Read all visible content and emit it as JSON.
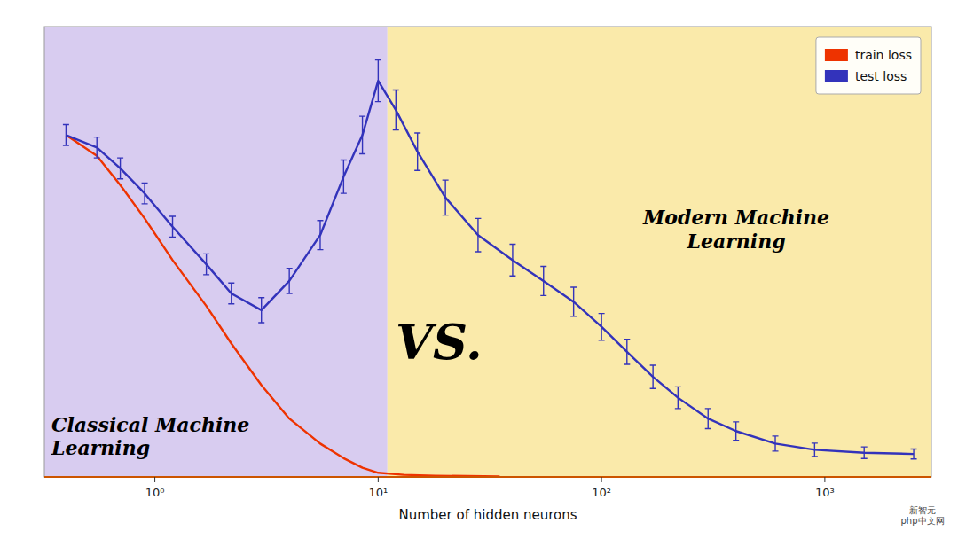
{
  "chart_data": {
    "type": "line",
    "x_label": "Number of hidden neurons",
    "log": "x",
    "xlim": [
      0.32,
      3000.0
    ],
    "ylim": [
      0.0,
      1.08
    ],
    "xticks": [
      {
        "value": 1,
        "label": "10⁰"
      },
      {
        "value": 10,
        "label": "10¹"
      },
      {
        "value": 100,
        "label": "10²"
      },
      {
        "value": 1000,
        "label": "10³"
      }
    ],
    "tick_labels": "x",
    "grid": false,
    "legend": "upper right",
    "series": [
      {
        "name": "train loss",
        "color": "#ee3300",
        "x": [
          0.4,
          0.55,
          0.7,
          0.9,
          1.2,
          1.7,
          2.2,
          3.0,
          4.0,
          5.5,
          7.0,
          8.5,
          10.0,
          13.0,
          18.0,
          25.0,
          35.0
        ],
        "values": [
          0.82,
          0.77,
          0.7,
          0.62,
          0.52,
          0.41,
          0.32,
          0.22,
          0.14,
          0.08,
          0.045,
          0.022,
          0.01,
          0.005,
          0.003,
          0.002,
          0.001
        ]
      },
      {
        "name": "test loss",
        "color": "#3333bb",
        "x": [
          0.4,
          0.55,
          0.7,
          0.9,
          1.2,
          1.7,
          2.2,
          3.0,
          4.0,
          5.5,
          7.0,
          8.5,
          10.0,
          12.0,
          15.0,
          20.0,
          28.0,
          40.0,
          55.0,
          75.0,
          100.0,
          130.0,
          170.0,
          220.0,
          300.0,
          400.0,
          600.0,
          900.0,
          1500.0,
          2500.0
        ],
        "values": [
          0.82,
          0.79,
          0.74,
          0.68,
          0.6,
          0.51,
          0.44,
          0.4,
          0.47,
          0.58,
          0.72,
          0.82,
          0.95,
          0.88,
          0.78,
          0.67,
          0.58,
          0.52,
          0.47,
          0.42,
          0.36,
          0.3,
          0.24,
          0.19,
          0.14,
          0.11,
          0.08,
          0.065,
          0.058,
          0.055
        ],
        "errors": [
          0.025,
          0.025,
          0.025,
          0.025,
          0.025,
          0.025,
          0.025,
          0.03,
          0.03,
          0.035,
          0.04,
          0.045,
          0.05,
          0.048,
          0.045,
          0.042,
          0.04,
          0.038,
          0.035,
          0.035,
          0.032,
          0.03,
          0.028,
          0.026,
          0.024,
          0.022,
          0.018,
          0.016,
          0.014,
          0.012
        ]
      }
    ],
    "regions": [
      {
        "from": 0.32,
        "to": 11.0,
        "color": "#d8ccf0"
      },
      {
        "from": 11.0,
        "to": 3000.0,
        "color": "#faeaaa"
      }
    ],
    "annotations": [
      {
        "text": "VS."
      },
      {
        "text": "Classical Machine\nLearning"
      },
      {
        "text": "Modern Machine\nLearning"
      },
      {
        "text": "新智元\nphp中文网"
      }
    ]
  }
}
